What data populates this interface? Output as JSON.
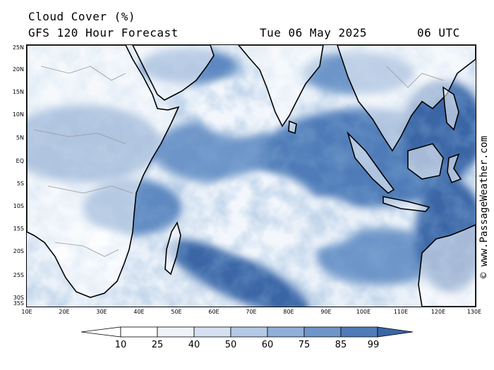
{
  "header": {
    "title": "Cloud Cover (%)",
    "subtitle": "GFS 120 Hour Forecast",
    "datetime": "Tue 06 May 2025",
    "utc": "06 UTC"
  },
  "map": {
    "lat_ticks": [
      "25N",
      "20N",
      "15N",
      "10N",
      "5N",
      "EQ",
      "5S",
      "10S",
      "15S",
      "20S",
      "25S",
      "30S",
      "35S"
    ],
    "lon_ticks": [
      "10E",
      "20E",
      "30E",
      "40E",
      "50E",
      "60E",
      "70E",
      "80E",
      "90E",
      "100E",
      "110E",
      "120E",
      "130E"
    ],
    "extent": {
      "lon_min": 10,
      "lon_max": 130,
      "lat_min": -35,
      "lat_max": 25
    },
    "land_color": "#ffffff",
    "coast_color": "#000000",
    "border_color": "#999999"
  },
  "legend": {
    "labels": [
      "10",
      "25",
      "40",
      "50",
      "60",
      "75",
      "85",
      "99"
    ],
    "colors": [
      "#ffffff",
      "#eef3fa",
      "#d5e1f1",
      "#b3c9e6",
      "#8fb0d9",
      "#6e95c8",
      "#4f7cb8",
      "#3a66a6",
      "#2f5a98"
    ]
  },
  "copyright": "© www.PassageWeather.com"
}
